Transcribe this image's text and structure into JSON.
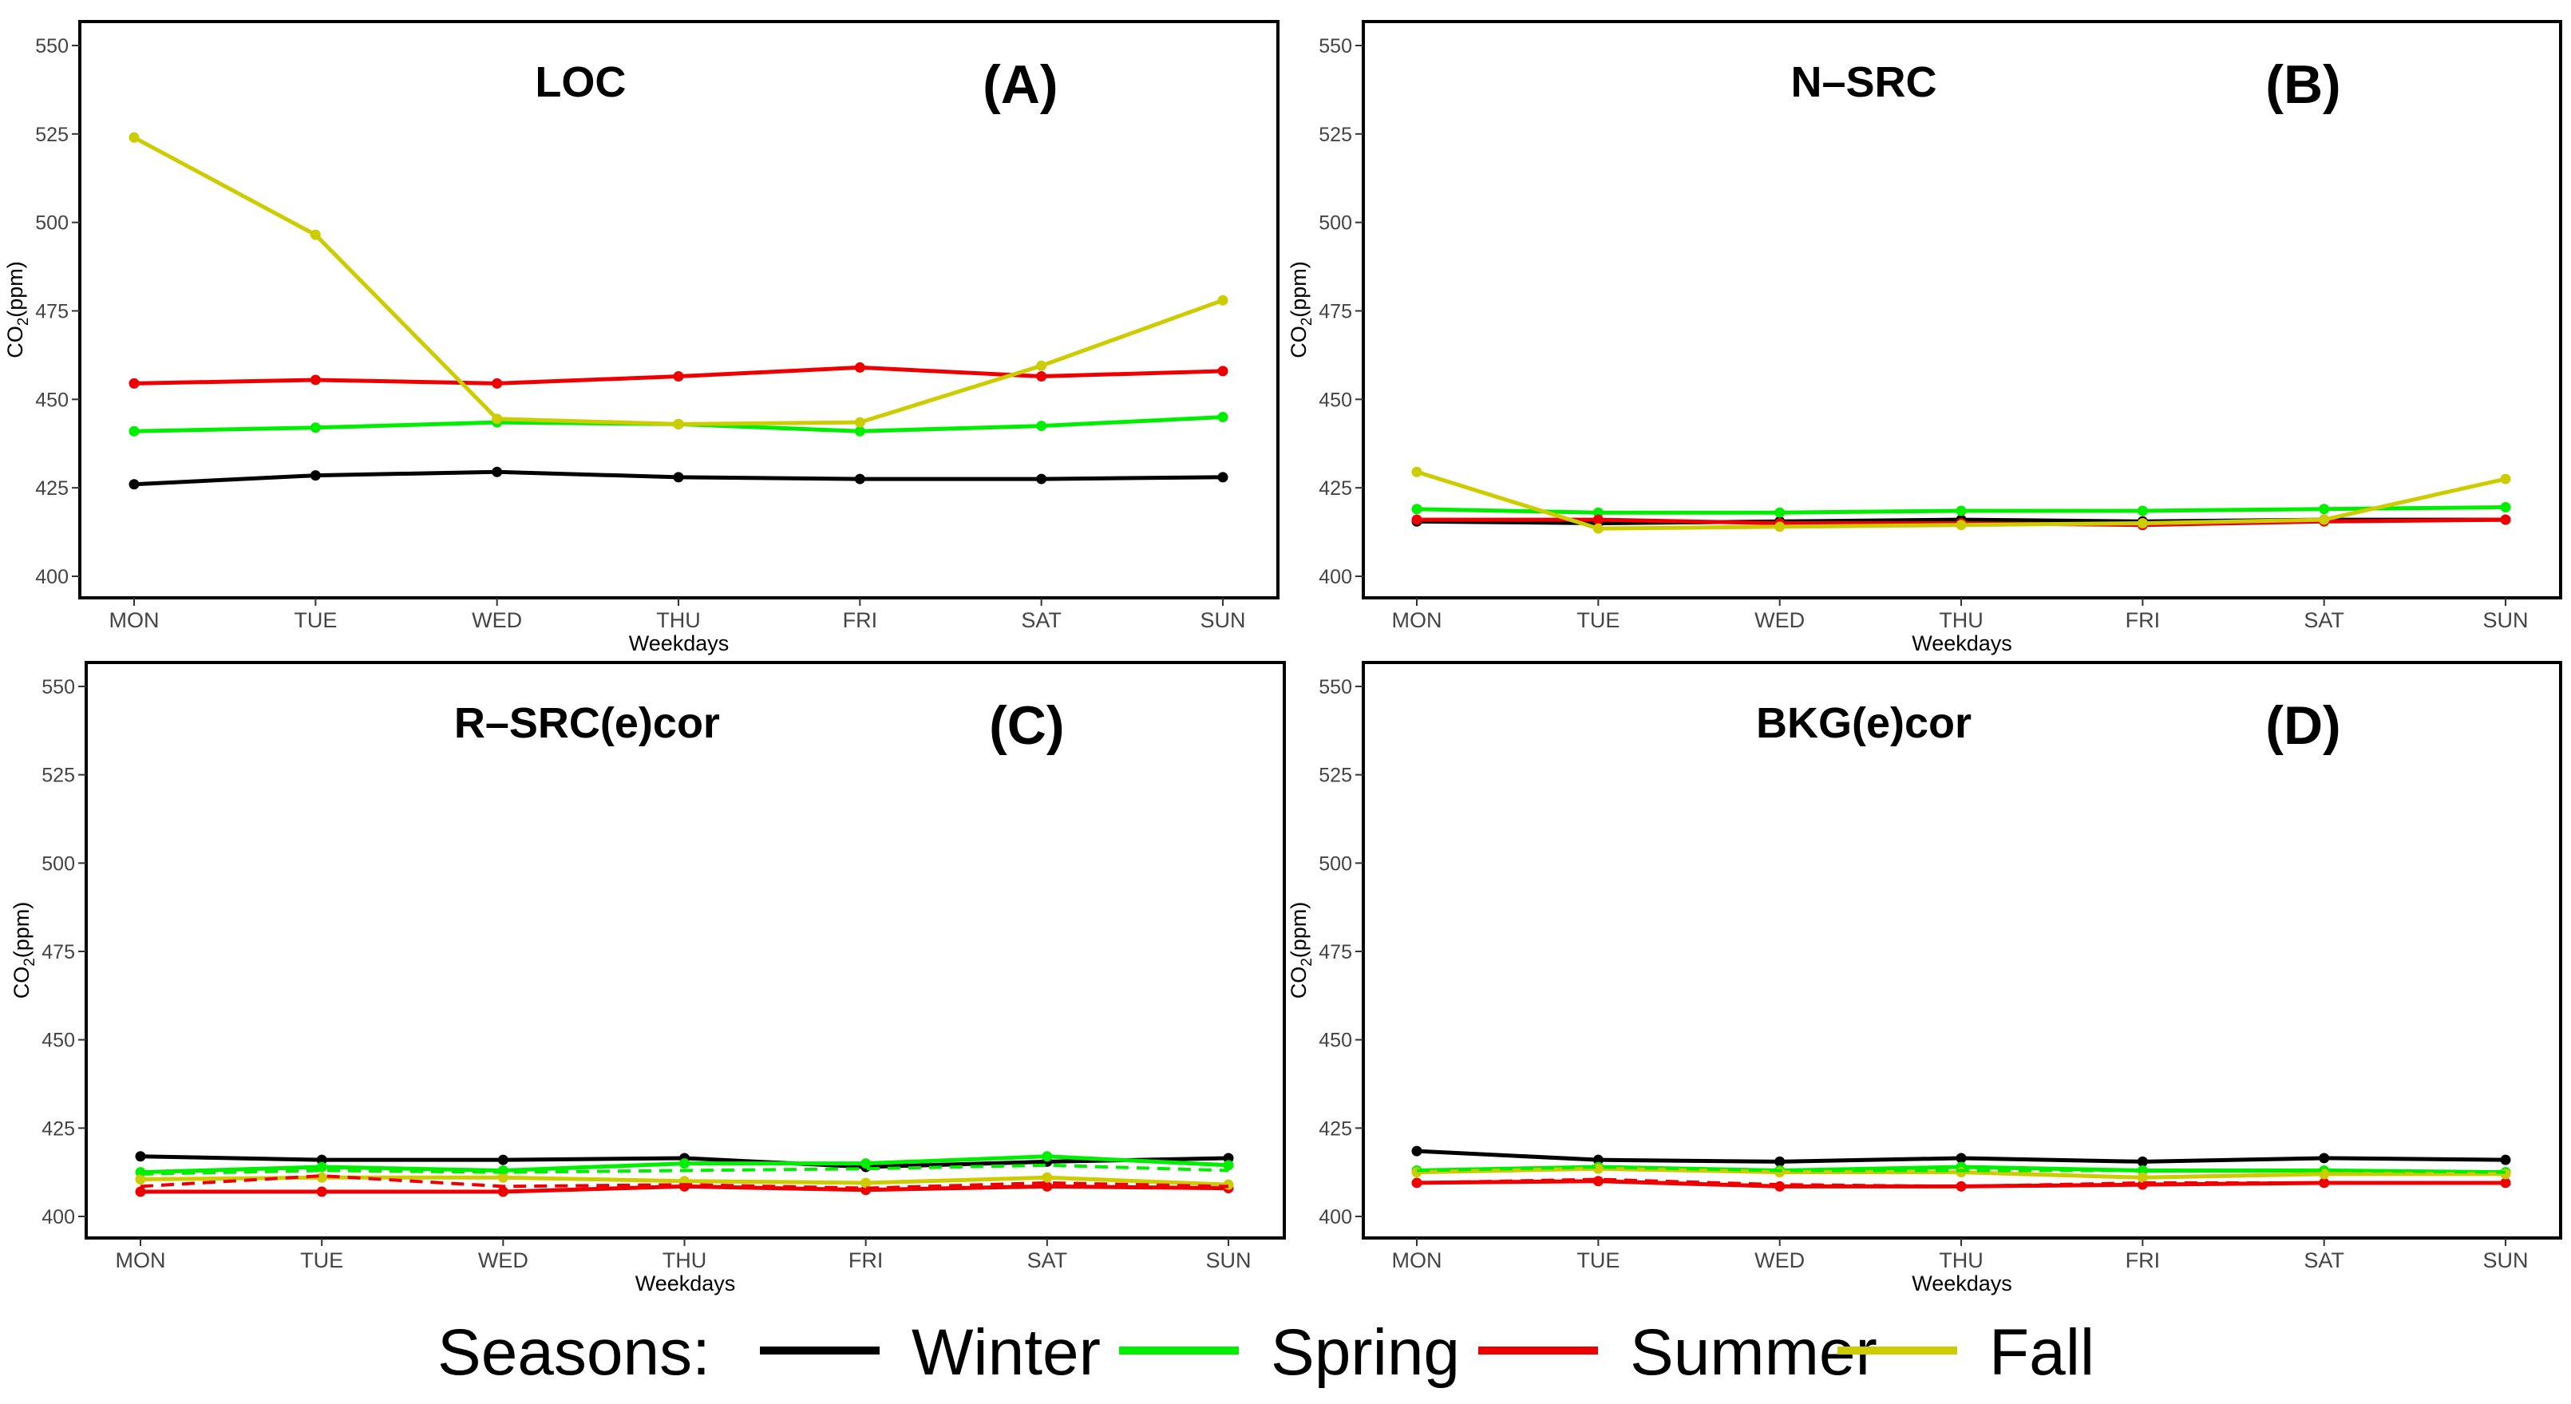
{
  "chart_data": {
    "type": "line",
    "y_axis_label": "CO2(ppm)",
    "x_axis_label": "Weekdays",
    "categories": [
      "MON",
      "TUE",
      "WED",
      "THU",
      "FRI",
      "SAT",
      "SUN"
    ],
    "y_range": [
      400,
      550
    ],
    "y_ticks": [
      400,
      425,
      450,
      475,
      500,
      525,
      550
    ],
    "legend": {
      "title": "Seasons:",
      "placement": "bottom",
      "items": [
        {
          "name": "Winter",
          "color": "#000000"
        },
        {
          "name": "Spring",
          "color": "#00ee00"
        },
        {
          "name": "Summer",
          "color": "#ee0000"
        },
        {
          "name": "Fall",
          "color": "#cccc00"
        }
      ]
    },
    "panels": [
      {
        "title": "LOC",
        "letter": "(A)",
        "series": [
          {
            "name": "Winter",
            "values": [
              426,
              428.5,
              429.5,
              428,
              427.5,
              427.5,
              428
            ]
          },
          {
            "name": "Spring",
            "values": [
              441,
              442,
              443.5,
              443,
              441,
              442.5,
              445
            ]
          },
          {
            "name": "Summer",
            "values": [
              454.5,
              455.5,
              454.5,
              456.5,
              459,
              456.5,
              458
            ]
          },
          {
            "name": "Fall",
            "values": [
              524,
              496.5,
              444.5,
              443,
              443.5,
              459.5,
              478
            ]
          }
        ]
      },
      {
        "title": "N–SRC",
        "letter": "(B)",
        "series": [
          {
            "name": "Winter",
            "values": [
              415.5,
              415,
              415.5,
              416,
              415.5,
              416,
              416
            ]
          },
          {
            "name": "Spring",
            "values": [
              419,
              418,
              418,
              418.5,
              418.5,
              419,
              419.5
            ]
          },
          {
            "name": "Summer",
            "values": [
              416,
              416,
              415,
              415,
              414.5,
              415.5,
              416
            ]
          },
          {
            "name": "Fall",
            "values": [
              429.5,
              413.5,
              414,
              414.5,
              415,
              416,
              427.5
            ]
          }
        ]
      },
      {
        "title": "R–SRC(e)cor",
        "letter": "(C)",
        "series": [
          {
            "name": "Winter",
            "values": [
              417,
              416,
              416,
              416.5,
              414,
              415.5,
              416.5
            ]
          },
          {
            "name": "Spring",
            "values": [
              412.5,
              414,
              413,
              415,
              415,
              417,
              414.5
            ]
          },
          {
            "name": "Summer",
            "values": [
              407,
              407,
              407,
              408.5,
              407.5,
              408.5,
              408
            ]
          },
          {
            "name": "Fall",
            "values": [
              410.5,
              411,
              411,
              410,
              409.5,
              411,
              409
            ]
          },
          {
            "name": "Summer (dashed)",
            "dashed": true,
            "values": [
              408.5,
              411.5,
              408.5,
              409,
              408,
              409.5,
              408.5
            ]
          },
          {
            "name": "Spring (dashed)",
            "dashed": true,
            "values": [
              412,
              413,
              412.5,
              413,
              413.5,
              414.5,
              413
            ]
          }
        ]
      },
      {
        "title": "BKG(e)cor",
        "letter": "(D)",
        "series": [
          {
            "name": "Winter",
            "values": [
              418.5,
              416,
              415.5,
              416.5,
              415.5,
              416.5,
              416
            ]
          },
          {
            "name": "Spring",
            "values": [
              413,
              414,
              413,
              414,
              413,
              413,
              412.5
            ]
          },
          {
            "name": "Summer",
            "values": [
              409.5,
              410,
              408.5,
              408.5,
              409,
              409.5,
              409.5
            ]
          },
          {
            "name": "Fall",
            "values": [
              412.5,
              413.5,
              412.5,
              412.5,
              411,
              412,
              412
            ]
          },
          {
            "name": "Summer (dashed)",
            "dashed": true,
            "values": [
              409.5,
              410.5,
              409,
              408.5,
              409.5,
              409.5,
              409.5
            ]
          },
          {
            "name": "Spring (dashed)",
            "dashed": true,
            "values": [
              413,
              414,
              413,
              413,
              413,
              413,
              412.5
            ]
          }
        ]
      }
    ]
  }
}
